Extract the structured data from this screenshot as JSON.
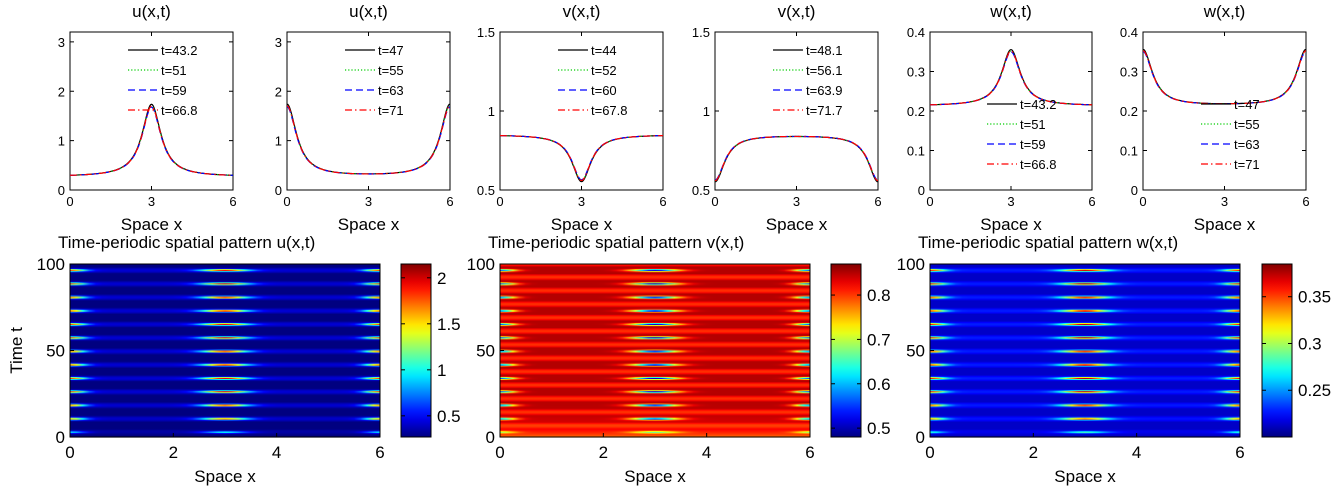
{
  "chart_data": [
    {
      "type": "line",
      "title": "u(x,t)",
      "xlabel": "Space x",
      "ylabel": "",
      "xlim": [
        0,
        6
      ],
      "ylim": [
        0,
        3.2
      ],
      "xticks": [
        "0",
        "3",
        "6"
      ],
      "yticks": [
        "0",
        "1",
        "2",
        "3"
      ],
      "profile": "peak",
      "base": 0.27,
      "amplitude": 1.43,
      "series": [
        {
          "name": "t=43.2",
          "values": "peak profile, max 1.75 at x=3",
          "color": "#000000",
          "dash": "solid"
        },
        {
          "name": "t=51",
          "values": "peak profile, max 1.70 at x=3",
          "color": "#00cc00",
          "dash": "dotted"
        },
        {
          "name": "t=59",
          "values": "peak profile, max 1.70 at x=3",
          "color": "#0000ff",
          "dash": "dashed"
        },
        {
          "name": "t=66.8",
          "values": "peak profile, max 1.70 at x=3",
          "color": "#ff0000",
          "dash": "dashdot"
        }
      ]
    },
    {
      "type": "line",
      "title": "u(x,t)",
      "xlabel": "Space x",
      "ylabel": "",
      "xlim": [
        0,
        6
      ],
      "ylim": [
        0,
        3.2
      ],
      "xticks": [
        "0",
        "3",
        "6"
      ],
      "yticks": [
        "0",
        "1",
        "2",
        "3"
      ],
      "profile": "edges",
      "base": 0.27,
      "amplitude": 1.43,
      "series": [
        {
          "name": "t=47",
          "values": "edge profile, max 1.70 at x=0 and x=6",
          "color": "#000000",
          "dash": "solid"
        },
        {
          "name": "t=55",
          "values": "edge profile, max 1.70 at x=0 and x=6",
          "color": "#00cc00",
          "dash": "dotted"
        },
        {
          "name": "t=63",
          "values": "edge profile, max 1.70 at x=0 and x=6",
          "color": "#0000ff",
          "dash": "dashed"
        },
        {
          "name": "t=71",
          "values": "edge profile, max 1.70 at x=0 and x=6",
          "color": "#ff0000",
          "dash": "dashdot"
        }
      ]
    },
    {
      "type": "line",
      "title": "v(x,t)",
      "xlabel": "Space x",
      "ylabel": "",
      "xlim": [
        0,
        6
      ],
      "ylim": [
        0.5,
        1.5
      ],
      "xticks": [
        "0",
        "3",
        "6"
      ],
      "yticks": [
        "0.5",
        "1",
        "1.5"
      ],
      "profile": "dip",
      "base": 0.85,
      "amplitude": -0.29,
      "series": [
        {
          "name": "t=44",
          "values": "dip profile, min 0.56 at x=3",
          "color": "#000000",
          "dash": "solid"
        },
        {
          "name": "t=52",
          "values": "dip profile, min 0.56 at x=3",
          "color": "#00cc00",
          "dash": "dotted"
        },
        {
          "name": "t=60",
          "values": "dip profile, min 0.56 at x=3",
          "color": "#0000ff",
          "dash": "dashed"
        },
        {
          "name": "t=67.8",
          "values": "dip profile, min 0.56 at x=3",
          "color": "#ff0000",
          "dash": "dashdot"
        }
      ]
    },
    {
      "type": "line",
      "title": "v(x,t)",
      "xlabel": "Space x",
      "ylabel": "",
      "xlim": [
        0,
        6
      ],
      "ylim": [
        0.5,
        1.5
      ],
      "xticks": [
        "0",
        "3",
        "6"
      ],
      "yticks": [
        "0.5",
        "1",
        "1.5"
      ],
      "profile": "edges",
      "base": 0.85,
      "amplitude": -0.29,
      "series": [
        {
          "name": "t=48.1",
          "values": "edge-dip profile, min 0.56 at x=0 and x=6",
          "color": "#000000",
          "dash": "solid"
        },
        {
          "name": "t=56.1",
          "values": "edge-dip profile, min 0.56 at x=0 and x=6",
          "color": "#00cc00",
          "dash": "dotted"
        },
        {
          "name": "t=63.9",
          "values": "edge-dip profile, min 0.56 at x=0 and x=6",
          "color": "#0000ff",
          "dash": "dashed"
        },
        {
          "name": "t=71.7",
          "values": "edge-dip profile, min 0.56 at x=0 and x=6",
          "color": "#ff0000",
          "dash": "dashdot"
        }
      ]
    },
    {
      "type": "line",
      "title": "w(x,t)",
      "xlabel": "Space x",
      "ylabel": "",
      "xlim": [
        0,
        6
      ],
      "ylim": [
        0,
        0.4
      ],
      "xticks": [
        "0",
        "3",
        "6"
      ],
      "yticks": [
        "0",
        "0.1",
        "0.2",
        "0.3",
        "0.4"
      ],
      "profile": "peak",
      "base": 0.213,
      "amplitude": 0.139,
      "series": [
        {
          "name": "t=43.2",
          "values": "peak profile, max 0.352 at x=3",
          "color": "#000000",
          "dash": "solid"
        },
        {
          "name": "t=51",
          "values": "peak profile, max 0.350 at x=3",
          "color": "#00cc00",
          "dash": "dotted"
        },
        {
          "name": "t=59",
          "values": "peak profile, max 0.350 at x=3",
          "color": "#0000ff",
          "dash": "dashed"
        },
        {
          "name": "t=66.8",
          "values": "peak profile, max 0.350 at x=3",
          "color": "#ff0000",
          "dash": "dashdot"
        }
      ]
    },
    {
      "type": "line",
      "title": "w(x,t)",
      "xlabel": "Space x",
      "ylabel": "",
      "xlim": [
        0,
        6
      ],
      "ylim": [
        0,
        0.4
      ],
      "xticks": [
        "0",
        "3",
        "6"
      ],
      "yticks": [
        "0",
        "0.1",
        "0.2",
        "0.3",
        "0.4"
      ],
      "profile": "edges",
      "base": 0.213,
      "amplitude": 0.139,
      "series": [
        {
          "name": "t=47",
          "values": "edge profile, max 0.352 at x=0 and x=6",
          "color": "#000000",
          "dash": "solid"
        },
        {
          "name": "t=55",
          "values": "edge profile, max 0.350 at x=0 and x=6",
          "color": "#00cc00",
          "dash": "dotted"
        },
        {
          "name": "t=63",
          "values": "edge profile, max 0.350 at x=0 and x=6",
          "color": "#0000ff",
          "dash": "dashed"
        },
        {
          "name": "t=71",
          "values": "edge profile, max 0.350 at x=0 and x=6",
          "color": "#ff0000",
          "dash": "dashdot"
        }
      ]
    },
    {
      "type": "heatmap",
      "title": "Time-periodic spatial pattern  u(x,t)",
      "xlabel": "Space x",
      "ylabel": "Time t",
      "xlim": [
        0,
        6
      ],
      "ylim": [
        0,
        100
      ],
      "xticks": [
        "0",
        "2",
        "4",
        "6"
      ],
      "yticks": [
        "0",
        "50",
        "100"
      ],
      "colorbar": {
        "min": 0.27,
        "max": 2.15,
        "ticks": [
          "0.5",
          "1",
          "1.5",
          "2"
        ]
      },
      "pattern": "in-phase",
      "period": 7.8,
      "base": 0.27,
      "center_peak": 1.9,
      "edge_peak": 1.7
    },
    {
      "type": "heatmap",
      "title": "Time-periodic spatial pattern  v(x,t)",
      "xlabel": "Space x",
      "ylabel": "",
      "xlim": [
        0,
        6
      ],
      "ylim": [
        0,
        100
      ],
      "xticks": [
        "0",
        "2",
        "4",
        "6"
      ],
      "yticks": [
        "0",
        "50",
        "100"
      ],
      "colorbar": {
        "min": 0.48,
        "max": 0.87,
        "ticks": [
          "0.5",
          "0.6",
          "0.7",
          "0.8"
        ]
      },
      "pattern": "anti-phase",
      "period": 7.8,
      "base": 0.85,
      "center_dip": 0.5,
      "edge_dip": 0.55
    },
    {
      "type": "heatmap",
      "title": "Time-periodic spatial pattern  w(x,t)",
      "xlabel": "Space x",
      "ylabel": "",
      "xlim": [
        0,
        6
      ],
      "ylim": [
        0,
        100
      ],
      "xticks": [
        "0",
        "2",
        "4",
        "6"
      ],
      "yticks": [
        "0",
        "50",
        "100"
      ],
      "colorbar": {
        "min": 0.2,
        "max": 0.385,
        "ticks": [
          "0.25",
          "0.3",
          "0.35"
        ]
      },
      "pattern": "in-phase",
      "period": 7.8,
      "base": 0.213,
      "center_peak": 0.37,
      "edge_peak": 0.35
    }
  ]
}
